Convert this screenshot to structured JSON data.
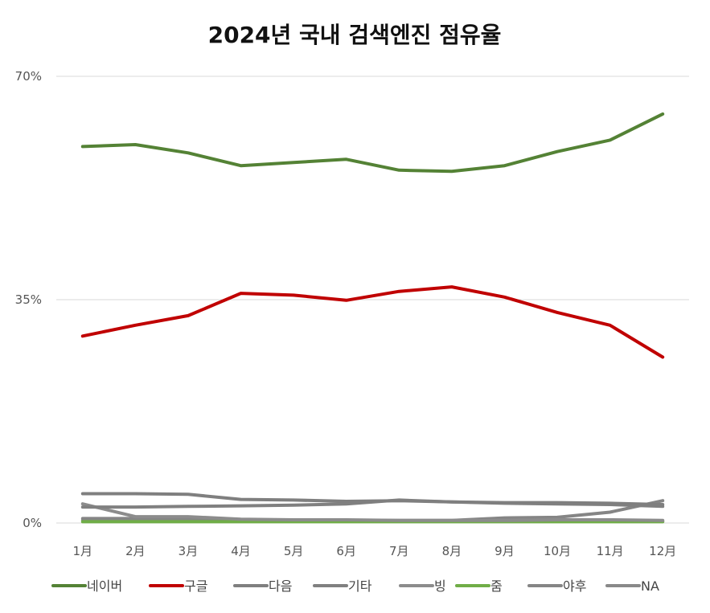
{
  "chart_data": {
    "type": "line",
    "title": "2024년 국내 검색엔진 점유율",
    "xlabel": "",
    "ylabel": "",
    "ylim": [
      0,
      70
    ],
    "yticks": [
      "0%",
      "35%",
      "70%"
    ],
    "ytick_values": [
      0,
      35,
      70
    ],
    "grid": true,
    "legend_position": "bottom",
    "categories": [
      "1月",
      "2月",
      "3月",
      "4月",
      "5月",
      "6月",
      "7月",
      "8月",
      "9月",
      "10月",
      "11月",
      "12月"
    ],
    "series": [
      {
        "name": "네이버",
        "color": "#548235",
        "values": [
          59.0,
          59.3,
          58.0,
          56.0,
          56.5,
          57.0,
          55.3,
          55.1,
          56.0,
          58.2,
          60.0,
          64.1
        ]
      },
      {
        "name": "구글",
        "color": "#c00000",
        "values": [
          29.3,
          31.0,
          32.5,
          36.0,
          35.7,
          34.9,
          36.3,
          37.0,
          35.4,
          33.0,
          31.0,
          26.0
        ]
      },
      {
        "name": "다음",
        "color": "#7f7f7f",
        "values": [
          4.6,
          4.6,
          4.5,
          3.7,
          3.6,
          3.4,
          3.5,
          3.3,
          3.2,
          3.2,
          3.1,
          2.9
        ]
      },
      {
        "name": "기타",
        "color": "#808080",
        "values": [
          2.5,
          2.5,
          2.6,
          2.7,
          2.8,
          3.0,
          3.6,
          3.3,
          3.1,
          3.0,
          2.9,
          2.6
        ]
      },
      {
        "name": "빙",
        "color": "#8c8c8c",
        "values": [
          3.0,
          1.0,
          1.0,
          0.6,
          0.5,
          0.5,
          0.4,
          0.4,
          0.4,
          0.5,
          0.5,
          0.4
        ]
      },
      {
        "name": "줌",
        "color": "#70ad47",
        "values": [
          0.2,
          0.2,
          0.2,
          0.2,
          0.2,
          0.2,
          0.2,
          0.2,
          0.2,
          0.2,
          0.2,
          0.2
        ]
      },
      {
        "name": "야후",
        "color": "#858585",
        "values": [
          0.7,
          0.7,
          0.6,
          0.5,
          0.4,
          0.4,
          0.4,
          0.4,
          0.8,
          0.9,
          1.7,
          3.5
        ]
      },
      {
        "name": "NA",
        "color": "#898989",
        "values": [
          0.4,
          0.4,
          0.4,
          0.3,
          0.3,
          0.3,
          0.3,
          0.3,
          0.3,
          0.3,
          0.3,
          0.3
        ]
      }
    ]
  }
}
